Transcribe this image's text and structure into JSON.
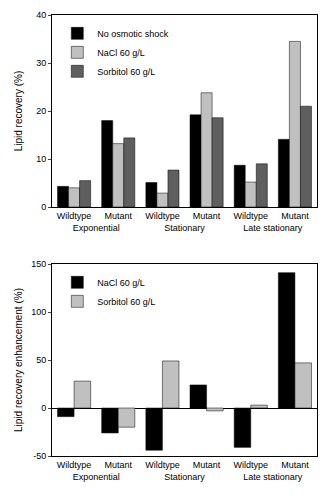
{
  "chart_data": [
    {
      "type": "bar",
      "y_label": "Lipid recovery (%)",
      "categories": [
        "Wildtype",
        "Mutant",
        "Wildtype",
        "Mutant",
        "Wildtype",
        "Mutant"
      ],
      "category_groups": [
        "Exponential",
        "Exponential",
        "Stationary",
        "Stationary",
        "Late stationary",
        "Late stationary"
      ],
      "series": [
        {
          "name": "No osmotic shock",
          "color": "#000000",
          "values": [
            4.3,
            18.0,
            5.1,
            19.2,
            8.7,
            14.1
          ]
        },
        {
          "name": "NaCl 60 g/L",
          "color": "#c0c0c0",
          "values": [
            4.0,
            13.2,
            2.9,
            23.8,
            5.2,
            34.5
          ]
        },
        {
          "name": "Sorbitol 60 g/L",
          "color": "#5f5f5f",
          "values": [
            5.5,
            14.4,
            7.7,
            18.6,
            9.0,
            21.0
          ]
        }
      ],
      "ylim": [
        0,
        40
      ],
      "yticks": [
        0,
        10,
        20,
        30,
        40
      ],
      "grid": false,
      "legend": "upper left"
    },
    {
      "type": "bar",
      "y_label": "Lipid recovery enhancement (%)",
      "categories": [
        "Wildtype",
        "Mutant",
        "Wildtype",
        "Mutant",
        "Wildtype",
        "Mutant"
      ],
      "category_groups": [
        "Exponential",
        "Exponential",
        "Stationary",
        "Stationary",
        "Late stationary",
        "Late stationary"
      ],
      "series": [
        {
          "name": "NaCl 60 g/L",
          "color": "#000000",
          "values": [
            -9,
            -26,
            -44,
            24,
            -41,
            141
          ]
        },
        {
          "name": "Sorbitol 60 g/L",
          "color": "#c0c0c0",
          "values": [
            28,
            -20,
            49,
            -3,
            3,
            47
          ]
        }
      ],
      "ylim": [
        -50,
        150
      ],
      "yticks": [
        -50,
        0,
        50,
        100,
        150
      ],
      "grid": false,
      "legend": "upper left"
    }
  ]
}
